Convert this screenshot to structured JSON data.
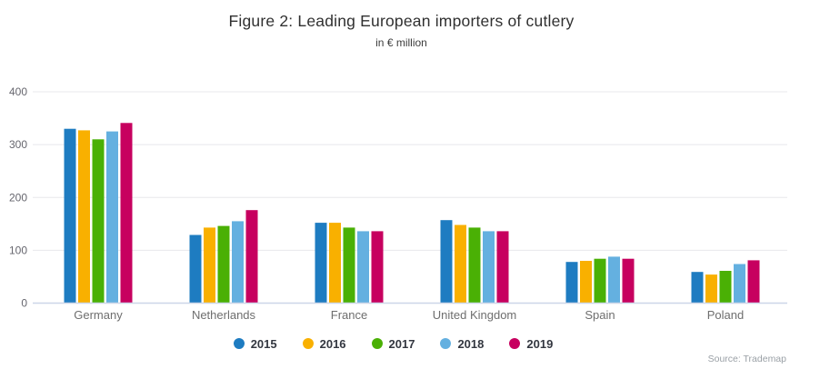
{
  "source": "Source: Trademap",
  "chart_data": {
    "type": "bar",
    "title": "Figure 2: Leading European importers of cutlery",
    "subtitle": "in € million",
    "categories": [
      "Germany",
      "Netherlands",
      "France",
      "United Kingdom",
      "Spain",
      "Poland"
    ],
    "series": [
      {
        "name": "2015",
        "color": "#1e7cc1",
        "values": [
          330,
          129,
          152,
          157,
          78,
          59
        ]
      },
      {
        "name": "2016",
        "color": "#f9b000",
        "values": [
          327,
          143,
          152,
          148,
          80,
          54
        ]
      },
      {
        "name": "2017",
        "color": "#4ab005",
        "values": [
          310,
          146,
          143,
          143,
          84,
          61
        ]
      },
      {
        "name": "2018",
        "color": "#64b0e0",
        "values": [
          325,
          155,
          136,
          136,
          88,
          74
        ]
      },
      {
        "name": "2019",
        "color": "#c7005f",
        "values": [
          341,
          176,
          136,
          136,
          84,
          81
        ]
      }
    ],
    "xlabel": "",
    "ylabel": "",
    "ylim": [
      0,
      400
    ],
    "yticks": [
      0,
      100,
      200,
      300,
      400
    ],
    "grid": true,
    "gridline_color": "#e8e8ec",
    "axis_line_color": "#ccd6e8",
    "axis_label_color": "#66666e",
    "category_label_color": "#6e6e6e",
    "legend_position": "bottom"
  }
}
